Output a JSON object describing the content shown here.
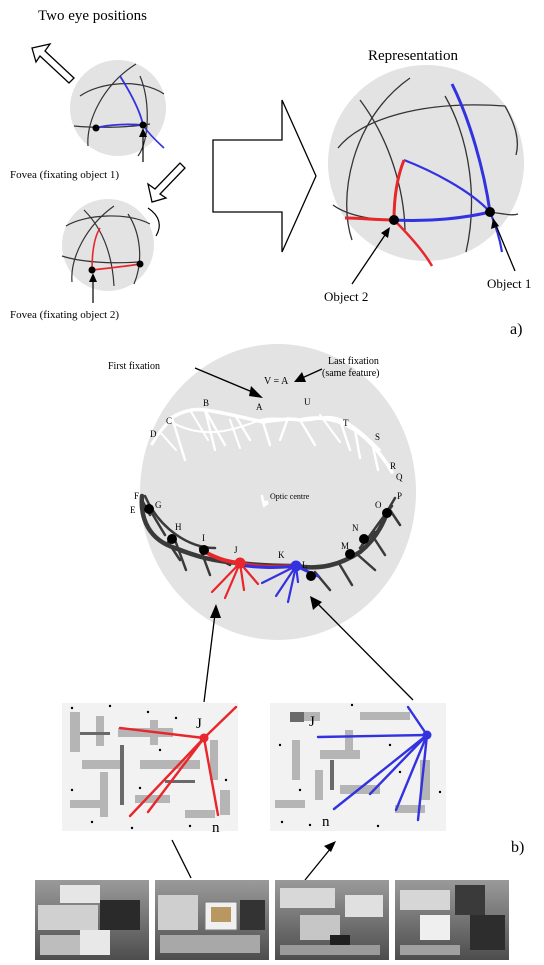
{
  "panel_a": {
    "title": "Two eye positions",
    "representation_label": "Representation",
    "fovea_1_label": "Fovea (fixating object 1)",
    "fovea_2_label": "Fovea (fixating object 2)",
    "object_1_label": "Object 1",
    "object_2_label": "Object 2",
    "panel_tag": "a)"
  },
  "panel_b": {
    "first_fixation_label": "First fixation",
    "last_fixation_label": "Last fixation",
    "same_feature_label": "(same feature)",
    "va_label": "V = A",
    "optic_centre_label": "Optic centre",
    "feature_letters": [
      "A",
      "B",
      "C",
      "D",
      "E",
      "F",
      "G",
      "H",
      "I",
      "J",
      "K",
      "L",
      "M",
      "N",
      "O",
      "P",
      "Q",
      "R",
      "S",
      "T",
      "U"
    ],
    "patch_left_j": "J",
    "patch_left_n": "n",
    "patch_right_j": "J",
    "patch_right_n": "n",
    "panel_tag": "b)"
  },
  "colors": {
    "sphere_fill": "#e3e3e3",
    "red": "#e8262b",
    "blue": "#3232e0",
    "dark_track": "#3a3a3a",
    "white_track": "#ffffff"
  }
}
